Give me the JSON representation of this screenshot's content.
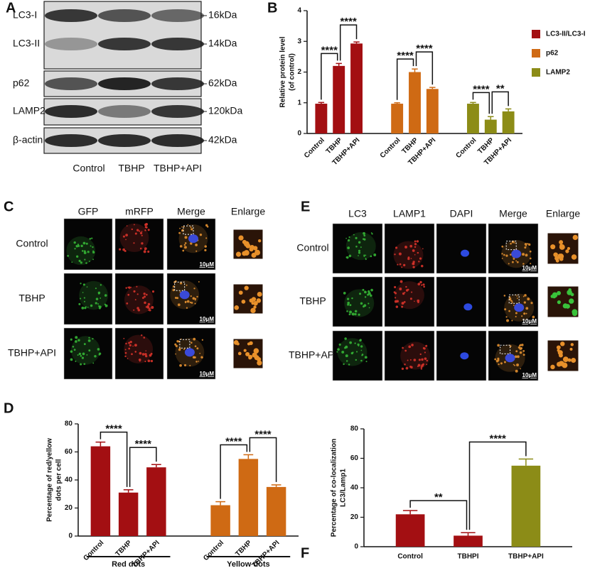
{
  "panel_labels": [
    "A",
    "B",
    "C",
    "D",
    "E",
    "F"
  ],
  "blot": {
    "rows": [
      {
        "label": "LC3-I",
        "size": "16kDa"
      },
      {
        "label": "LC3-II",
        "size": "14kDa"
      },
      {
        "label": "p62",
        "size": "62kDa"
      },
      {
        "label": "LAMP2",
        "size": "120kDa"
      },
      {
        "label": "β-actin",
        "size": "42kDa"
      }
    ],
    "lanes": [
      "Control",
      "TBHP",
      "TBHP+API"
    ]
  },
  "panel_c": {
    "columns": [
      "GFP",
      "mRFP",
      "Merge",
      "Enlarge"
    ],
    "rows": [
      "Control",
      "TBHP",
      "TBHP+API"
    ],
    "scale_bar": "10μM"
  },
  "panel_e": {
    "columns": [
      "LC3",
      "LAMP1",
      "DAPI",
      "Merge",
      "Enlarge"
    ],
    "rows": [
      "Control",
      "TBHP",
      "TBHP+API"
    ],
    "scale_bar": "10μM"
  },
  "chart_data": [
    {
      "type": "bar",
      "ylabel": [
        "Relative protein level",
        "(of control)"
      ],
      "categories": [
        "Control",
        "TBHP",
        "TBHP+API"
      ],
      "series": [
        {
          "name": "LC3-II/LC3-I",
          "color": "#a30f12",
          "values": [
            0.97,
            2.2,
            2.93
          ],
          "errors": [
            0.04,
            0.08,
            0.05
          ],
          "significance": [
            "****",
            "****"
          ]
        },
        {
          "name": "p62",
          "color": "#cf6a14",
          "values": [
            0.97,
            2.0,
            1.45
          ],
          "errors": [
            0.03,
            0.1,
            0.05
          ],
          "significance": [
            "****",
            "****"
          ]
        },
        {
          "name": "LAMP2",
          "color": "#8c8c17",
          "values": [
            0.97,
            0.45,
            0.72
          ],
          "errors": [
            0.04,
            0.1,
            0.08
          ],
          "significance": [
            "****",
            "**"
          ]
        }
      ],
      "ylim": [
        0,
        4
      ],
      "yticks": [
        0,
        1,
        2,
        3,
        4
      ],
      "legend": "right"
    },
    {
      "type": "bar",
      "ylabel": [
        "Percentage of red/yellow",
        "dots per cell"
      ],
      "categories": [
        "Control",
        "TBHP",
        "TBHP+API"
      ],
      "series": [
        {
          "name": "Red dots",
          "color": "#a30f12",
          "values": [
            64,
            31,
            49
          ],
          "errors": [
            3,
            2,
            2
          ],
          "significance": [
            "****",
            "****"
          ]
        },
        {
          "name": "Yellow dots",
          "color": "#cf6a14",
          "values": [
            22,
            55,
            35
          ],
          "errors": [
            2.5,
            3,
            1.5
          ],
          "significance": [
            "****",
            "****"
          ]
        }
      ],
      "ylim": [
        0,
        80
      ],
      "yticks": [
        0,
        20,
        40,
        60,
        80
      ],
      "legend": "bottom"
    },
    {
      "type": "bar",
      "ylabel": [
        "Percentage of co-localization",
        "LC3/Lamp1"
      ],
      "categories": [
        "Control",
        "TBHPI",
        "TBHP+API"
      ],
      "values": [
        22,
        7.5,
        55
      ],
      "errors": [
        2.5,
        2,
        4.5
      ],
      "colors": [
        "#a30f12",
        "#a30f12",
        "#8c8c17"
      ],
      "significance": [
        "**",
        "****"
      ],
      "ylim": [
        0,
        80
      ],
      "yticks": [
        0,
        20,
        40,
        60,
        80
      ]
    }
  ]
}
